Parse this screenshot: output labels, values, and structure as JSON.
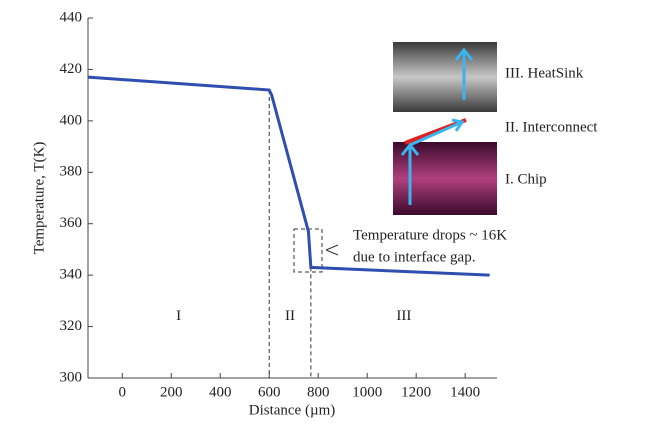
{
  "chart_data": {
    "type": "line",
    "xlabel": "Distance (µm)",
    "ylabel": "Temperature, T(K)",
    "xlim": [
      -140,
      1530
    ],
    "xticks": [
      0,
      200,
      400,
      600,
      800,
      1000,
      1200,
      1400
    ],
    "ylim": [
      300,
      440
    ],
    "yticks": [
      300,
      320,
      340,
      360,
      380,
      400,
      420,
      440
    ],
    "x": [
      -140,
      600,
      610,
      760,
      770,
      1500
    ],
    "series": [
      {
        "color": "#2f4fb0",
        "values": [
          417,
          412,
          410,
          357,
          343,
          340
        ]
      }
    ],
    "dividers": [
      600,
      770
    ],
    "region_labels": [
      "I",
      "II",
      "III"
    ],
    "annotations": [
      "Temperature drops ~ 16K",
      "due to interface gap."
    ],
    "inset_labels": [
      "III. HeatSink",
      "II. Interconnect",
      "I. Chip"
    ]
  }
}
